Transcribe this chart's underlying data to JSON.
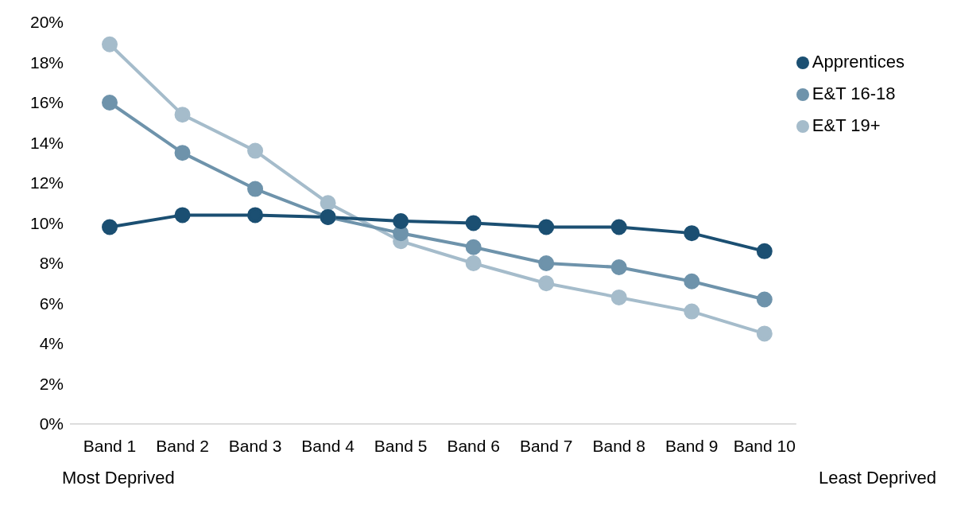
{
  "chart_data": {
    "type": "line",
    "categories": [
      "Band 1",
      "Band 2",
      "Band 3",
      "Band 4",
      "Band 5",
      "Band 6",
      "Band 7",
      "Band 8",
      "Band 9",
      "Band 10"
    ],
    "series": [
      {
        "name": "Apprentices",
        "color": "#1b4f72",
        "values": [
          9.8,
          10.4,
          10.4,
          10.3,
          10.1,
          10.0,
          9.8,
          9.8,
          9.5,
          8.6
        ]
      },
      {
        "name": "E&T 16-18",
        "color": "#6e93ab",
        "values": [
          16.0,
          13.5,
          11.7,
          10.3,
          9.5,
          8.8,
          8.0,
          7.8,
          7.1,
          6.2
        ]
      },
      {
        "name": "E&T 19+",
        "color": "#a5bccb",
        "values": [
          18.9,
          15.4,
          13.6,
          11.0,
          9.1,
          8.0,
          7.0,
          6.3,
          5.6,
          4.5
        ]
      }
    ],
    "ylim": [
      0,
      20
    ],
    "yticks": [
      {
        "value": 0,
        "label": "0%"
      },
      {
        "value": 2,
        "label": "2%"
      },
      {
        "value": 4,
        "label": "4%"
      },
      {
        "value": 6,
        "label": "6%"
      },
      {
        "value": 8,
        "label": "8%"
      },
      {
        "value": 10,
        "label": "10%"
      },
      {
        "value": 12,
        "label": "12%"
      },
      {
        "value": 14,
        "label": "14%"
      },
      {
        "value": 16,
        "label": "16%"
      },
      {
        "value": 18,
        "label": "18%"
      },
      {
        "value": 20,
        "label": "20%"
      }
    ],
    "grid": false,
    "legend": "top right",
    "marker": "circle",
    "line_style": "solid",
    "annotations": [
      "Most Deprived",
      "Least Deprived"
    ]
  }
}
